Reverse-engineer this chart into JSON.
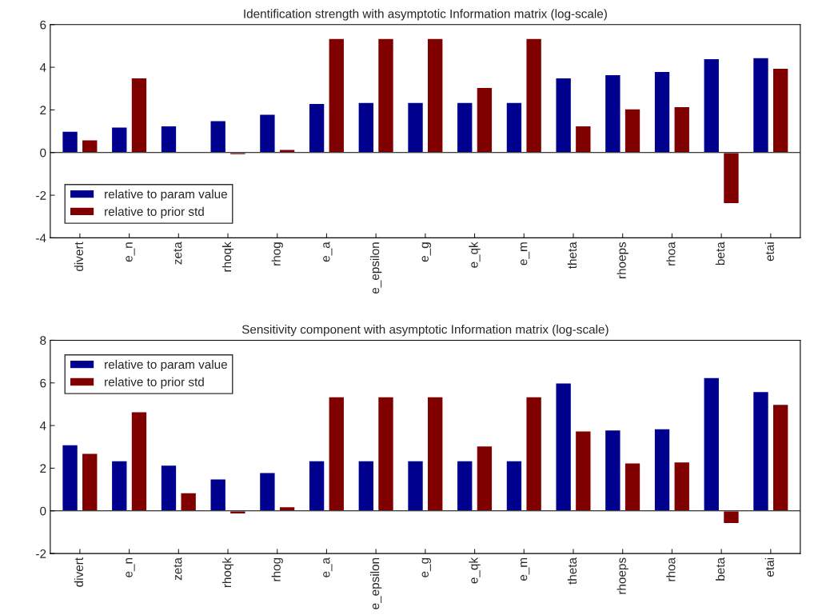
{
  "chart_data": [
    {
      "type": "bar",
      "title": "Identification strength with asymptotic Information matrix (log-scale)",
      "categories": [
        "divert",
        "e_n",
        "zeta",
        "rhoqk",
        "rhog",
        "e_a",
        "e_epsilon",
        "e_g",
        "e_qk",
        "e_m",
        "theta",
        "rhoeps",
        "rhoa",
        "beta",
        "etai"
      ],
      "series": [
        {
          "name": "relative to param value",
          "color": "#00008f",
          "values": [
            1.0,
            1.2,
            1.25,
            1.5,
            1.8,
            2.3,
            2.35,
            2.35,
            2.35,
            2.35,
            3.5,
            3.65,
            3.8,
            4.4,
            4.45
          ]
        },
        {
          "name": "relative to prior std",
          "color": "#800000",
          "values": [
            0.6,
            3.5,
            -0.05,
            -0.1,
            0.15,
            5.35,
            5.35,
            5.35,
            3.05,
            5.35,
            1.25,
            2.05,
            2.15,
            -2.4,
            3.95
          ]
        }
      ],
      "ylim": [
        -4,
        6
      ],
      "yticks": [
        -4,
        -2,
        0,
        2,
        4,
        6
      ],
      "legend": "lower left",
      "ref_lines": [
        {
          "axis": "y",
          "value": 0,
          "color": "#000000"
        }
      ]
    },
    {
      "type": "bar",
      "title": "Sensitivity component with asymptotic Information matrix (log-scale)",
      "categories": [
        "divert",
        "e_n",
        "zeta",
        "rhoqk",
        "rhog",
        "e_a",
        "e_epsilon",
        "e_g",
        "e_qk",
        "e_m",
        "theta",
        "rhoeps",
        "rhoa",
        "beta",
        "etai"
      ],
      "series": [
        {
          "name": "relative to param value",
          "color": "#00008f",
          "values": [
            3.1,
            2.35,
            2.15,
            1.5,
            1.8,
            2.35,
            2.35,
            2.35,
            2.35,
            2.35,
            6.0,
            3.8,
            3.85,
            6.25,
            5.6
          ]
        },
        {
          "name": "relative to prior std",
          "color": "#800000",
          "values": [
            2.7,
            4.65,
            0.85,
            -0.15,
            0.2,
            5.35,
            5.35,
            5.35,
            3.05,
            5.35,
            3.75,
            2.25,
            2.3,
            -0.6,
            5.0
          ]
        }
      ],
      "ylim": [
        -2,
        8
      ],
      "yticks": [
        -2,
        0,
        2,
        4,
        6,
        8
      ],
      "legend": "upper left",
      "ref_lines": [
        {
          "axis": "y",
          "value": 0,
          "color": "#000000"
        }
      ]
    }
  ]
}
